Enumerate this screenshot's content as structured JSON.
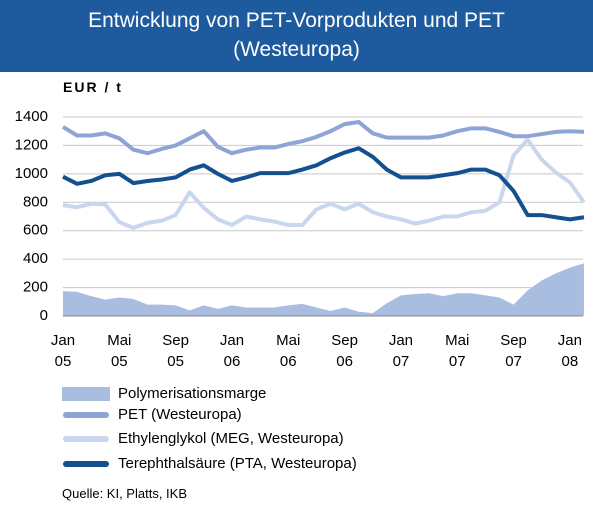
{
  "chart_data": {
    "type": "line",
    "title": "Entwicklung von PET-Vorprodukten und PET\n(Westeuropa)",
    "y_label": "EUR / t",
    "source": "Quelle: KI, Platts, IKB",
    "categories": [
      "Jan\n05",
      null,
      null,
      null,
      "Mai\n05",
      null,
      null,
      null,
      "Sep\n05",
      null,
      null,
      null,
      "Jan\n06",
      null,
      null,
      null,
      "Mai\n06",
      null,
      null,
      null,
      "Sep\n06",
      null,
      null,
      null,
      "Jan\n07",
      null,
      null,
      null,
      "Mai\n07",
      null,
      null,
      null,
      "Sep\n07",
      null,
      null,
      null,
      "Jan\n08",
      null
    ],
    "ylim": [
      0,
      1400
    ],
    "yticks": [
      0,
      200,
      400,
      600,
      800,
      1000,
      1200,
      1400
    ],
    "grid": true,
    "series": [
      {
        "name": "Polymerisationsmarge",
        "kind": "area",
        "color": "#a9bde1",
        "values": [
          175,
          170,
          140,
          115,
          130,
          120,
          80,
          80,
          75,
          40,
          75,
          50,
          75,
          60,
          60,
          60,
          75,
          85,
          60,
          35,
          60,
          30,
          20,
          90,
          145,
          155,
          160,
          140,
          160,
          160,
          145,
          130,
          80,
          180,
          250,
          300,
          340,
          370
        ]
      },
      {
        "name": "PET (Westeuropa)",
        "kind": "line",
        "color": "#8ea4d5",
        "values": [
          1330,
          1270,
          1270,
          1285,
          1250,
          1170,
          1145,
          1175,
          1200,
          1250,
          1300,
          1190,
          1145,
          1170,
          1185,
          1185,
          1210,
          1230,
          1260,
          1300,
          1350,
          1365,
          1285,
          1255,
          1255,
          1255,
          1255,
          1270,
          1300,
          1320,
          1320,
          1295,
          1265,
          1265,
          1280,
          1295,
          1300,
          1295
        ]
      },
      {
        "name": "Ethylenglykol (MEG, Westeuropa)",
        "kind": "line",
        "color": "#c9d7ee",
        "values": [
          780,
          765,
          790,
          785,
          660,
          620,
          655,
          670,
          710,
          870,
          760,
          680,
          640,
          700,
          680,
          665,
          640,
          640,
          750,
          790,
          750,
          790,
          730,
          700,
          680,
          650,
          670,
          700,
          700,
          730,
          740,
          800,
          1130,
          1240,
          1100,
          1010,
          940,
          800
        ]
      },
      {
        "name": "Terephthalsäure (PTA, Westeuropa)",
        "kind": "line",
        "color": "#14508f",
        "values": [
          980,
          930,
          950,
          990,
          1000,
          935,
          950,
          960,
          975,
          1030,
          1060,
          1000,
          950,
          975,
          1005,
          1005,
          1005,
          1030,
          1060,
          1110,
          1150,
          1180,
          1120,
          1030,
          975,
          975,
          975,
          990,
          1005,
          1030,
          1030,
          990,
          880,
          710,
          710,
          695,
          680,
          695
        ]
      }
    ]
  }
}
